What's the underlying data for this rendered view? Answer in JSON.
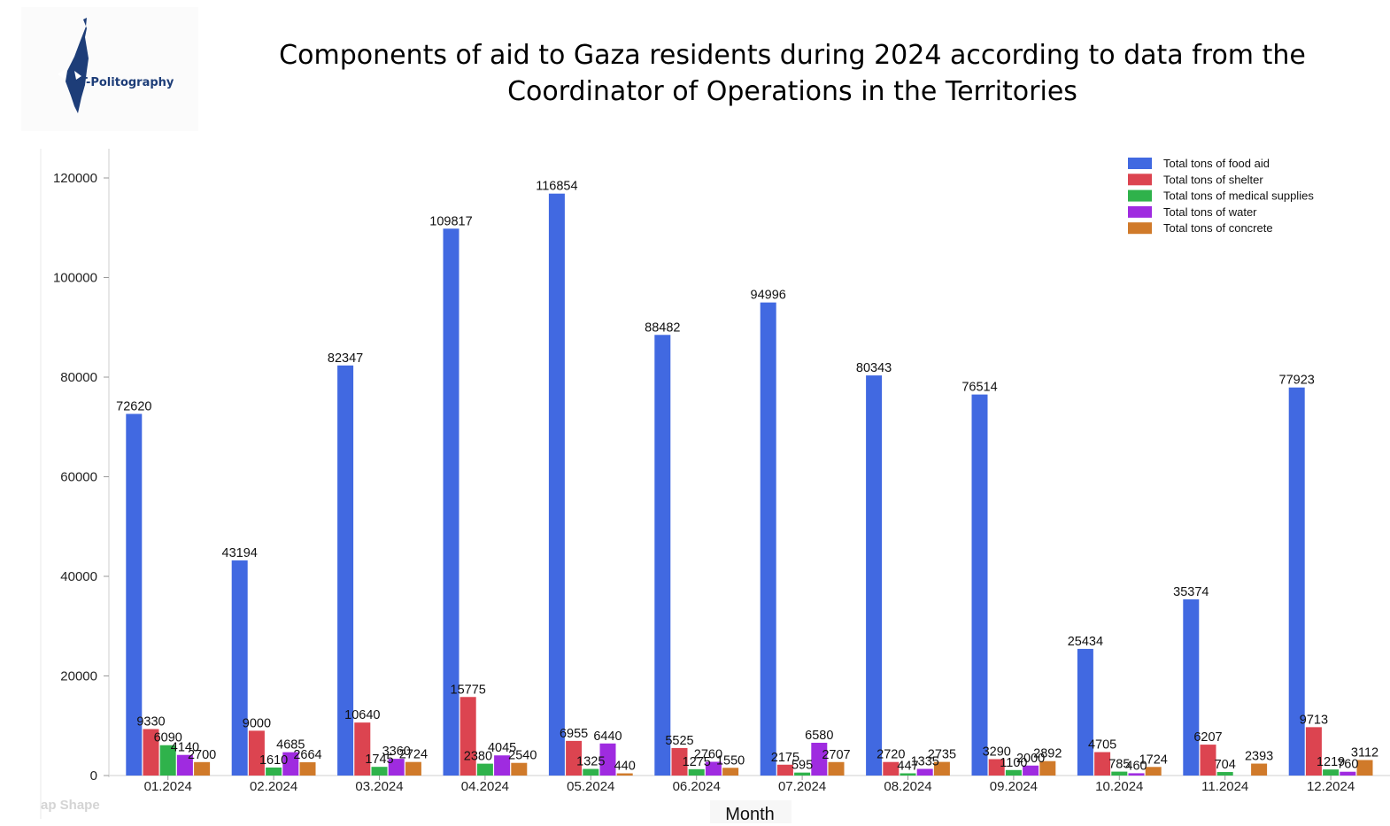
{
  "header": {
    "title": "Components of aid to Gaza residents during 2024 according to data from the Coordinator of Operations in the Territories",
    "logo_text": "T-Politography"
  },
  "watermark": "ap Shape",
  "colors": {
    "food": "#4169e1",
    "shelter": "#dc4450",
    "medical": "#2fb24b",
    "water": "#9f2be0",
    "concrete": "#d07a2a"
  },
  "chart_data": {
    "type": "bar",
    "title": "Components of aid to Gaza residents during 2024 according to data from the Coordinator of Operations in the Territories",
    "xlabel": "Month",
    "ylabel": "",
    "ylim": [
      0,
      126000
    ],
    "yticks": [
      0,
      20000,
      40000,
      60000,
      80000,
      100000,
      120000
    ],
    "legend_position": "top-right",
    "categories": [
      "01.2024",
      "02.2024",
      "03.2024",
      "04.2024",
      "05.2024",
      "06.2024",
      "07.2024",
      "08.2024",
      "09.2024",
      "10.2024",
      "11.2024",
      "12.2024"
    ],
    "series": [
      {
        "name": "Total tons of food aid",
        "color": "#4169e1",
        "values": [
          72620,
          43194,
          82347,
          109817,
          116854,
          88482,
          94996,
          80343,
          76514,
          25434,
          35374,
          77923
        ]
      },
      {
        "name": "Total tons of shelter",
        "color": "#dc4450",
        "values": [
          9330,
          9000,
          10640,
          15775,
          6955,
          5525,
          2175,
          2720,
          3290,
          4705,
          6207,
          9713
        ]
      },
      {
        "name": "Total tons of medical supplies",
        "color": "#2fb24b",
        "values": [
          6090,
          1610,
          1745,
          2380,
          1325,
          1275,
          595,
          447,
          1100,
          785,
          704,
          1219
        ]
      },
      {
        "name": "Total tons of water",
        "color": "#9f2be0",
        "values": [
          4140,
          4685,
          3360,
          4045,
          6440,
          2760,
          6580,
          1335,
          2000,
          460,
          null,
          760
        ]
      },
      {
        "name": "Total tons of concrete",
        "color": "#d07a2a",
        "values": [
          2700,
          2664,
          2724,
          2540,
          440,
          1550,
          2707,
          2735,
          2892,
          1724,
          2393,
          3112
        ]
      }
    ]
  }
}
